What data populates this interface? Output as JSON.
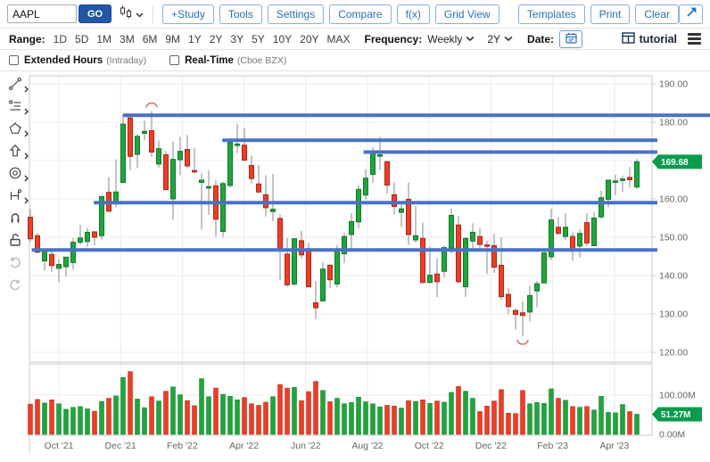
{
  "toolbar": {
    "symbol": "AAPL",
    "go": "GO",
    "buttons": [
      "+Study",
      "Tools",
      "Settings",
      "Compare",
      "f(x)",
      "Grid View"
    ],
    "right_buttons": [
      "Templates",
      "Print",
      "Clear"
    ]
  },
  "rangebar": {
    "range_label": "Range:",
    "ranges": [
      "1D",
      "5D",
      "1M",
      "3M",
      "6M",
      "9M",
      "1Y",
      "2Y",
      "3Y",
      "5Y",
      "10Y",
      "20Y",
      "MAX"
    ],
    "frequency_label": "Frequency:",
    "frequency_value": "Weekly",
    "period_value": "2Y",
    "date_label": "Date:",
    "brand": "tutorial"
  },
  "options": {
    "ext_hours": "Extended Hours",
    "ext_hours_sub": "(Intraday)",
    "realtime": "Real-Time",
    "realtime_sub": "(Cboe BZX)"
  },
  "side_tools": [
    "trendline",
    "fib-retracement",
    "polygon-shape",
    "arrow-up",
    "ellipse",
    "measure",
    "magnet",
    "lock-open",
    "undo",
    "redo"
  ],
  "colors": {
    "up": "#1fa53c",
    "up_border": "#107a28",
    "down": "#ef3d24",
    "down_border": "#a8291a",
    "annotation_line": "#4a72c4",
    "badge": "#089c4c",
    "arc": "#e2574c",
    "wick": "#8a8a8a",
    "grid": "#ebebeb",
    "frame": "#c8c8c8",
    "axis_text": "#666"
  },
  "chart_data": {
    "type": "candlestick",
    "symbol": "AAPL",
    "frequency": "Weekly",
    "last_price": "169.68",
    "last_volume": "51.27M",
    "price_ticks": [
      190,
      180,
      170,
      160,
      150,
      140,
      130,
      120
    ],
    "price_tick_labels": [
      "190.00",
      "180.00",
      "160.00",
      "150.00",
      "140.00",
      "130.00",
      "120.00"
    ],
    "hidden_tick": 170,
    "ylim": [
      117.7,
      192.1
    ],
    "volume_ticks": [
      {
        "value": 100,
        "label": "100.00M"
      },
      {
        "value": 0,
        "label": "0.00M"
      }
    ],
    "x_labels": [
      "Oct '21",
      "Dec '21",
      "Feb '22",
      "Apr '22",
      "Jun '22",
      "Aug '22",
      "Oct '22",
      "Dec '22",
      "Feb '23",
      "Apr '23"
    ],
    "horizontal_lines": [
      {
        "price": 181.8,
        "start_index": 13.5,
        "to_edge": true
      },
      {
        "price": 175.3,
        "start_index": 27.4,
        "to_edge": false
      },
      {
        "price": 172.2,
        "start_index": 47.2,
        "to_edge": false
      },
      {
        "price": 159.0,
        "start_index": 9.4,
        "to_edge": false
      },
      {
        "price": 146.7,
        "start_index": 0.7,
        "to_edge": false
      }
    ],
    "annotations": [
      {
        "type": "arc-over-high",
        "index": 17
      },
      {
        "type": "arc-under-low",
        "index": 69
      }
    ],
    "candles": [
      [
        155.2,
        157.3,
        148.8,
        149.6,
        77
      ],
      [
        150.4,
        151.1,
        145.8,
        146.1,
        89
      ],
      [
        143.8,
        147.1,
        141.3,
        146.9,
        80
      ],
      [
        145.5,
        146.4,
        141.0,
        142.6,
        88
      ],
      [
        141.9,
        144.2,
        138.3,
        142.9,
        78
      ],
      [
        142.3,
        144.9,
        139.8,
        144.8,
        64
      ],
      [
        143.4,
        149.8,
        141.5,
        148.7,
        69
      ],
      [
        148.7,
        153.2,
        148.0,
        149.8,
        71
      ],
      [
        148.9,
        152.4,
        147.5,
        151.3,
        65
      ],
      [
        151.4,
        151.6,
        147.9,
        150.0,
        59
      ],
      [
        150.4,
        161.0,
        149.4,
        160.6,
        84
      ],
      [
        161.7,
        165.7,
        156.4,
        156.8,
        92
      ],
      [
        159.4,
        170.3,
        157.8,
        161.8,
        98
      ],
      [
        164.3,
        182.1,
        164.3,
        179.5,
        145
      ],
      [
        181.1,
        182.1,
        167.5,
        171.1,
        160
      ],
      [
        171.6,
        176.9,
        168.0,
        176.3,
        90
      ],
      [
        177.1,
        180.4,
        175.3,
        177.6,
        68
      ],
      [
        177.8,
        182.9,
        171.0,
        172.2,
        96
      ],
      [
        169.1,
        175.2,
        168.2,
        173.1,
        85
      ],
      [
        171.5,
        172.5,
        162.3,
        162.4,
        110
      ],
      [
        160.0,
        175.0,
        154.5,
        170.3,
        121
      ],
      [
        170.2,
        176.2,
        166.2,
        172.4,
        101
      ],
      [
        172.9,
        176.7,
        168.0,
        168.6,
        86
      ],
      [
        167.4,
        173.3,
        166.6,
        167.3,
        73
      ],
      [
        164.3,
        166.7,
        152.0,
        164.9,
        142
      ],
      [
        163.1,
        167.4,
        155.8,
        163.2,
        96
      ],
      [
        163.4,
        165.0,
        150.1,
        154.7,
        118
      ],
      [
        151.5,
        164.5,
        150.1,
        164.0,
        102
      ],
      [
        163.5,
        175.3,
        163.0,
        174.7,
        97
      ],
      [
        174.0,
        179.6,
        171.9,
        174.3,
        88
      ],
      [
        174.0,
        178.5,
        169.9,
        170.1,
        94
      ],
      [
        168.7,
        171.3,
        164.0,
        165.3,
        78
      ],
      [
        163.9,
        168.9,
        161.5,
        161.8,
        74
      ],
      [
        161.1,
        166.2,
        155.4,
        157.7,
        82
      ],
      [
        156.7,
        166.5,
        154.2,
        157.3,
        96
      ],
      [
        154.9,
        156.0,
        138.8,
        147.1,
        127
      ],
      [
        145.6,
        149.8,
        137.1,
        137.6,
        118
      ],
      [
        137.8,
        149.7,
        137.3,
        149.6,
        120
      ],
      [
        149.1,
        151.7,
        144.5,
        145.4,
        86
      ],
      [
        147.0,
        148.6,
        137.1,
        137.1,
        109
      ],
      [
        132.9,
        138.6,
        128.7,
        131.6,
        135
      ],
      [
        133.4,
        143.5,
        133.3,
        141.7,
        112
      ],
      [
        142.7,
        143.1,
        136.7,
        138.9,
        83
      ],
      [
        137.8,
        148.0,
        136.9,
        147.0,
        92
      ],
      [
        145.7,
        151.2,
        143.3,
        150.2,
        78
      ],
      [
        150.7,
        156.3,
        146.7,
        154.1,
        81
      ],
      [
        154.0,
        163.6,
        152.3,
        162.5,
        95
      ],
      [
        161.0,
        167.8,
        159.8,
        165.4,
        83
      ],
      [
        166.4,
        173.4,
        164.2,
        172.1,
        78
      ],
      [
        171.5,
        176.2,
        167.6,
        171.5,
        70
      ],
      [
        169.7,
        169.9,
        161.4,
        163.6,
        74
      ],
      [
        161.1,
        164.3,
        155.9,
        158.0,
        72
      ],
      [
        156.5,
        159.0,
        152.7,
        157.4,
        67
      ],
      [
        159.9,
        164.3,
        148.0,
        150.7,
        86
      ],
      [
        149.3,
        158.1,
        148.6,
        150.4,
        84
      ],
      [
        149.7,
        153.8,
        138.0,
        138.2,
        88
      ],
      [
        138.2,
        147.5,
        138.0,
        140.1,
        79
      ],
      [
        140.4,
        144.5,
        134.4,
        138.4,
        85
      ],
      [
        141.1,
        147.8,
        139.5,
        147.3,
        82
      ],
      [
        147.2,
        157.5,
        145.8,
        155.7,
        107
      ],
      [
        153.2,
        155.5,
        138.1,
        138.4,
        122
      ],
      [
        137.1,
        150.0,
        134.4,
        149.7,
        110
      ],
      [
        149.0,
        153.6,
        147.0,
        151.3,
        92
      ],
      [
        150.2,
        152.4,
        146.9,
        148.1,
        58
      ],
      [
        148.0,
        149.1,
        140.4,
        147.8,
        72
      ],
      [
        147.8,
        150.9,
        140.7,
        142.2,
        85
      ],
      [
        142.7,
        150.0,
        133.7,
        134.5,
        114
      ],
      [
        135.1,
        136.8,
        129.9,
        131.9,
        54
      ],
      [
        130.9,
        131.4,
        125.9,
        129.9,
        53
      ],
      [
        130.3,
        133.4,
        124.2,
        129.6,
        112
      ],
      [
        130.5,
        137.3,
        128.1,
        134.8,
        78
      ],
      [
        136.0,
        138.6,
        131.7,
        137.9,
        81
      ],
      [
        138.1,
        147.2,
        137.9,
        145.9,
        79
      ],
      [
        144.9,
        157.4,
        144.1,
        154.5,
        116
      ],
      [
        152.6,
        155.2,
        150.6,
        151.0,
        92
      ],
      [
        150.2,
        156.3,
        149.2,
        152.6,
        87
      ],
      [
        150.2,
        151.3,
        143.9,
        146.7,
        71
      ],
      [
        147.7,
        152.1,
        144.7,
        151.0,
        69
      ],
      [
        153.8,
        156.3,
        147.6,
        148.5,
        71
      ],
      [
        147.8,
        156.5,
        147.7,
        155.0,
        62
      ],
      [
        155.3,
        162.1,
        154.8,
        160.3,
        97
      ],
      [
        159.9,
        165.0,
        157.8,
        164.9,
        56
      ],
      [
        164.3,
        166.3,
        161.0,
        164.7,
        55
      ],
      [
        164.8,
        166.1,
        161.9,
        165.2,
        76
      ],
      [
        165.6,
        168.3,
        163.0,
        165.0,
        58
      ],
      [
        163.1,
        170.4,
        162.6,
        169.68,
        51.27
      ]
    ]
  }
}
